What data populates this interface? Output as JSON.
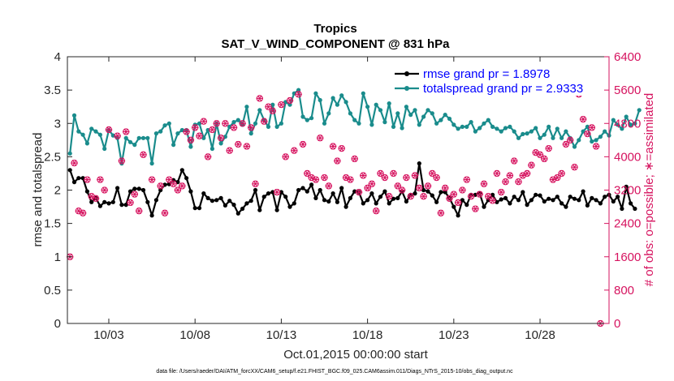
{
  "chart_data": {
    "type": "line",
    "title": "Tropics",
    "subtitle": "SAT_V_WIND_COMPONENT @ 831 hPa",
    "xlabel": "Oct.01,2015 00:00:00 start",
    "ylabel_left": "rmse and totalspread",
    "ylabel_right": "# of obs: o=possible; ∗=assimilated",
    "footnote": "data file: /Users/raeder/DAI/ATM_forcXX/CAM6_setup/f.e21.FHIST_BGC.f09_025.CAM6assim.011/Diags_NTrS_2015-10/obs_diag_output.nc",
    "xlim": [
      0.6,
      32.0
    ],
    "ylim_left": [
      0,
      4
    ],
    "ylim_right": [
      0,
      6400
    ],
    "left_ticks": [
      "0",
      "0.5",
      "1",
      "1.5",
      "2",
      "2.5",
      "3",
      "3.5",
      "4"
    ],
    "right_ticks": [
      "0",
      "800",
      "1600",
      "2400",
      "3200",
      "4000",
      "4800",
      "5600",
      "6400"
    ],
    "x_ticks": [
      {
        "pos": 3,
        "label": "10/03"
      },
      {
        "pos": 8,
        "label": "10/08"
      },
      {
        "pos": 13,
        "label": "10/13"
      },
      {
        "pos": 18,
        "label": "10/18"
      },
      {
        "pos": 23,
        "label": "10/23"
      },
      {
        "pos": 28,
        "label": "10/28"
      }
    ],
    "legend": [
      {
        "name": "rmse grand pr = 1.8978",
        "color": "#000000"
      },
      {
        "name": "totalspread grand pr = 2.9333",
        "color": "#1a8c8c"
      }
    ],
    "x_start": 0.75,
    "x_step": 0.25,
    "series": [
      {
        "name": "rmse",
        "axis": "left",
        "color": "#000000",
        "values": [
          2.3,
          2.12,
          2.18,
          2.18,
          1.98,
          1.82,
          1.88,
          1.76,
          1.82,
          1.8,
          1.82,
          2.03,
          1.78,
          1.78,
          1.98,
          2.02,
          2.02,
          2.0,
          1.82,
          1.62,
          1.85,
          2.0,
          2.08,
          2.09,
          2.15,
          2.12,
          2.3,
          2.18,
          1.98,
          1.73,
          1.73,
          1.95,
          1.88,
          1.84,
          1.85,
          1.88,
          1.77,
          1.84,
          1.78,
          1.65,
          1.72,
          1.8,
          1.84,
          2.0,
          1.7,
          1.9,
          1.95,
          1.97,
          1.7,
          1.97,
          1.9,
          1.75,
          1.8,
          2.0,
          2.03,
          1.98,
          2.08,
          1.88,
          2.0,
          1.85,
          1.83,
          1.95,
          1.82,
          2.03,
          1.75,
          1.88,
          1.98,
          1.97,
          1.8,
          1.85,
          1.95,
          1.8,
          1.9,
          1.98,
          1.8,
          1.87,
          1.88,
          1.98,
          1.83,
          1.93,
          1.95,
          2.4,
          2.0,
          1.98,
          1.92,
          1.82,
          1.97,
          1.97,
          1.88,
          1.75,
          1.62,
          1.85,
          1.78,
          1.93,
          1.93,
          1.95,
          1.75,
          1.85,
          1.93,
          1.82,
          1.86,
          1.88,
          1.8,
          1.9,
          1.85,
          1.97,
          1.78,
          1.85,
          1.93,
          1.92,
          1.83,
          1.87,
          1.85,
          1.9,
          1.8,
          1.75,
          1.9,
          1.87,
          1.85,
          1.98,
          1.77,
          1.88,
          1.85,
          1.8,
          1.9,
          1.93,
          1.83,
          1.9,
          1.72,
          2.05,
          1.8,
          1.72
        ]
      },
      {
        "name": "totalspread",
        "axis": "left",
        "color": "#1a8c8c",
        "values": [
          2.55,
          3.12,
          2.88,
          2.83,
          2.7,
          2.92,
          2.88,
          2.83,
          2.62,
          2.9,
          2.82,
          2.78,
          2.4,
          2.78,
          2.72,
          2.68,
          2.78,
          2.78,
          2.78,
          2.4,
          2.85,
          2.88,
          2.97,
          3.0,
          2.68,
          2.85,
          2.9,
          2.9,
          2.65,
          2.98,
          3.0,
          2.78,
          2.9,
          2.62,
          3.0,
          2.7,
          2.8,
          2.95,
          3.02,
          3.05,
          2.98,
          3.25,
          2.85,
          3.0,
          3.2,
          3.05,
          2.95,
          3.28,
          2.95,
          3.0,
          3.32,
          3.28,
          3.45,
          3.5,
          3.1,
          3.05,
          3.08,
          3.45,
          3.35,
          3.0,
          3.15,
          3.38,
          3.28,
          3.42,
          3.32,
          3.15,
          3.05,
          3.0,
          3.45,
          3.25,
          2.98,
          3.28,
          3.2,
          3.02,
          3.3,
          2.95,
          3.15,
          2.93,
          3.25,
          3.13,
          3.2,
          2.98,
          3.1,
          3.2,
          3.15,
          3.0,
          3.05,
          3.13,
          3.07,
          2.98,
          2.92,
          2.95,
          2.95,
          3.02,
          2.88,
          2.93,
          3.0,
          3.05,
          2.95,
          2.92,
          2.88,
          2.93,
          2.95,
          2.88,
          2.78,
          2.84,
          2.85,
          2.88,
          2.93,
          2.78,
          2.83,
          2.95,
          2.78,
          2.92,
          2.78,
          2.88,
          2.78,
          2.65,
          2.75,
          2.88,
          2.95,
          2.73,
          2.75,
          2.8,
          2.88,
          2.82,
          3.05,
          2.98,
          2.92,
          3.1,
          2.98,
          3.0,
          3.2
        ]
      }
    ],
    "obs_points": [
      {
        "axis": "right",
        "x": 0.75,
        "y": 1600
      },
      {
        "axis": "right",
        "x": 1.0,
        "y": 3850
      },
      {
        "axis": "right",
        "x": 1.25,
        "y": 2700
      },
      {
        "axis": "right",
        "x": 1.5,
        "y": 2650
      },
      {
        "axis": "right",
        "x": 1.75,
        "y": 3450
      },
      {
        "axis": "right",
        "x": 2.0,
        "y": 3050
      },
      {
        "axis": "right",
        "x": 2.25,
        "y": 3000
      },
      {
        "axis": "right",
        "x": 2.5,
        "y": 3450
      },
      {
        "axis": "right",
        "x": 2.75,
        "y": 3200
      },
      {
        "axis": "right",
        "x": 3.0,
        "y": 4650
      },
      {
        "axis": "right",
        "x": 3.5,
        "y": 4500
      },
      {
        "axis": "right",
        "x": 3.75,
        "y": 3900
      },
      {
        "axis": "right",
        "x": 4.0,
        "y": 4600
      },
      {
        "axis": "right",
        "x": 4.25,
        "y": 2900
      },
      {
        "axis": "right",
        "x": 4.5,
        "y": 3100
      },
      {
        "axis": "right",
        "x": 4.75,
        "y": 2700
      },
      {
        "axis": "right",
        "x": 5.0,
        "y": 4050
      },
      {
        "axis": "right",
        "x": 5.5,
        "y": 3450
      },
      {
        "axis": "right",
        "x": 6.0,
        "y": 3300
      },
      {
        "axis": "right",
        "x": 6.25,
        "y": 2650
      },
      {
        "axis": "right",
        "x": 6.5,
        "y": 3450
      },
      {
        "axis": "right",
        "x": 6.75,
        "y": 3350
      },
      {
        "axis": "right",
        "x": 7.0,
        "y": 3200
      },
      {
        "axis": "right",
        "x": 7.25,
        "y": 3300
      },
      {
        "axis": "right",
        "x": 7.5,
        "y": 4600
      },
      {
        "axis": "right",
        "x": 7.75,
        "y": 4400
      },
      {
        "axis": "right",
        "x": 8.0,
        "y": 4700
      },
      {
        "axis": "right",
        "x": 8.25,
        "y": 4500
      },
      {
        "axis": "right",
        "x": 8.5,
        "y": 4850
      },
      {
        "axis": "right",
        "x": 8.75,
        "y": 4000
      },
      {
        "axis": "right",
        "x": 9.0,
        "y": 4650
      },
      {
        "axis": "right",
        "x": 9.25,
        "y": 4800
      },
      {
        "axis": "right",
        "x": 9.5,
        "y": 4450
      },
      {
        "axis": "right",
        "x": 9.75,
        "y": 4800
      },
      {
        "axis": "right",
        "x": 10.0,
        "y": 4150
      },
      {
        "axis": "right",
        "x": 10.25,
        "y": 4700
      },
      {
        "axis": "right",
        "x": 10.5,
        "y": 4300
      },
      {
        "axis": "right",
        "x": 10.75,
        "y": 4800
      },
      {
        "axis": "right",
        "x": 11.0,
        "y": 4250
      },
      {
        "axis": "right",
        "x": 11.25,
        "y": 4700
      },
      {
        "axis": "right",
        "x": 11.5,
        "y": 3350
      },
      {
        "axis": "right",
        "x": 11.75,
        "y": 5400
      },
      {
        "axis": "right",
        "x": 12.0,
        "y": 4850
      },
      {
        "axis": "right",
        "x": 12.25,
        "y": 5200
      },
      {
        "axis": "right",
        "x": 12.5,
        "y": 5100
      },
      {
        "axis": "right",
        "x": 12.75,
        "y": 3150
      },
      {
        "axis": "right",
        "x": 13.0,
        "y": 5250
      },
      {
        "axis": "right",
        "x": 13.25,
        "y": 4000
      },
      {
        "axis": "right",
        "x": 13.5,
        "y": 5350
      },
      {
        "axis": "right",
        "x": 13.75,
        "y": 4150
      },
      {
        "axis": "right",
        "x": 14.0,
        "y": 5500
      },
      {
        "axis": "right",
        "x": 14.25,
        "y": 4300
      },
      {
        "axis": "right",
        "x": 14.5,
        "y": 3600
      },
      {
        "axis": "right",
        "x": 14.75,
        "y": 3500
      },
      {
        "axis": "right",
        "x": 15.0,
        "y": 3450
      },
      {
        "axis": "right",
        "x": 15.25,
        "y": 4450
      },
      {
        "axis": "right",
        "x": 15.5,
        "y": 3500
      },
      {
        "axis": "right",
        "x": 15.75,
        "y": 3300
      },
      {
        "axis": "right",
        "x": 16.0,
        "y": 4250
      },
      {
        "axis": "right",
        "x": 16.25,
        "y": 3900
      },
      {
        "axis": "right",
        "x": 16.5,
        "y": 4200
      },
      {
        "axis": "right",
        "x": 16.75,
        "y": 3500
      },
      {
        "axis": "right",
        "x": 17.0,
        "y": 3450
      },
      {
        "axis": "right",
        "x": 17.25,
        "y": 3950
      },
      {
        "axis": "right",
        "x": 17.5,
        "y": 3150
      },
      {
        "axis": "right",
        "x": 17.75,
        "y": 3550
      },
      {
        "axis": "right",
        "x": 18.0,
        "y": 3250
      },
      {
        "axis": "right",
        "x": 18.25,
        "y": 3350
      },
      {
        "axis": "right",
        "x": 18.5,
        "y": 2700
      },
      {
        "axis": "right",
        "x": 18.75,
        "y": 3600
      },
      {
        "axis": "right",
        "x": 19.0,
        "y": 3500
      },
      {
        "axis": "right",
        "x": 19.25,
        "y": 3050
      },
      {
        "axis": "right",
        "x": 19.5,
        "y": 3600
      },
      {
        "axis": "right",
        "x": 19.75,
        "y": 3300
      },
      {
        "axis": "right",
        "x": 20.0,
        "y": 3200
      },
      {
        "axis": "right",
        "x": 20.25,
        "y": 3500
      },
      {
        "axis": "right",
        "x": 20.5,
        "y": 3050
      },
      {
        "axis": "right",
        "x": 20.75,
        "y": 3550
      },
      {
        "axis": "right",
        "x": 21.0,
        "y": 3250
      },
      {
        "axis": "right",
        "x": 21.25,
        "y": 3050
      },
      {
        "axis": "right",
        "x": 21.5,
        "y": 3300
      },
      {
        "axis": "right",
        "x": 21.75,
        "y": 3600
      },
      {
        "axis": "right",
        "x": 22.0,
        "y": 3500
      },
      {
        "axis": "right",
        "x": 22.25,
        "y": 2650
      },
      {
        "axis": "right",
        "x": 22.5,
        "y": 3250
      },
      {
        "axis": "right",
        "x": 22.75,
        "y": 3000
      },
      {
        "axis": "right",
        "x": 23.0,
        "y": 3100
      },
      {
        "axis": "right",
        "x": 23.25,
        "y": 2900
      },
      {
        "axis": "right",
        "x": 23.5,
        "y": 3200
      },
      {
        "axis": "right",
        "x": 23.75,
        "y": 3450
      },
      {
        "axis": "right",
        "x": 24.0,
        "y": 3050
      },
      {
        "axis": "right",
        "x": 24.25,
        "y": 2750
      },
      {
        "axis": "right",
        "x": 24.5,
        "y": 3100
      },
      {
        "axis": "right",
        "x": 24.75,
        "y": 3350
      },
      {
        "axis": "right",
        "x": 25.0,
        "y": 3050
      },
      {
        "axis": "right",
        "x": 25.25,
        "y": 2950
      },
      {
        "axis": "right",
        "x": 25.5,
        "y": 3600
      },
      {
        "axis": "right",
        "x": 25.75,
        "y": 3150
      },
      {
        "axis": "right",
        "x": 26.0,
        "y": 3400
      },
      {
        "axis": "right",
        "x": 26.25,
        "y": 3550
      },
      {
        "axis": "right",
        "x": 26.5,
        "y": 3900
      },
      {
        "axis": "right",
        "x": 26.75,
        "y": 3400
      },
      {
        "axis": "right",
        "x": 27.0,
        "y": 3550
      },
      {
        "axis": "right",
        "x": 27.25,
        "y": 3600
      },
      {
        "axis": "right",
        "x": 27.5,
        "y": 3800
      },
      {
        "axis": "right",
        "x": 27.75,
        "y": 4100
      },
      {
        "axis": "right",
        "x": 28.0,
        "y": 4050
      },
      {
        "axis": "right",
        "x": 28.25,
        "y": 3950
      },
      {
        "axis": "right",
        "x": 28.5,
        "y": 4200
      },
      {
        "axis": "right",
        "x": 28.75,
        "y": 3450
      },
      {
        "axis": "right",
        "x": 29.0,
        "y": 3500
      },
      {
        "axis": "right",
        "x": 29.25,
        "y": 3600
      },
      {
        "axis": "right",
        "x": 29.5,
        "y": 4300
      },
      {
        "axis": "right",
        "x": 29.75,
        "y": 4400
      },
      {
        "axis": "right",
        "x": 30.0,
        "y": 3750
      },
      {
        "axis": "right",
        "x": 30.25,
        "y": 5500
      },
      {
        "axis": "right",
        "x": 30.5,
        "y": 4900
      },
      {
        "axis": "right",
        "x": 30.75,
        "y": 4550
      },
      {
        "axis": "right",
        "x": 31.0,
        "y": 4700
      },
      {
        "axis": "right",
        "x": 31.25,
        "y": 4250
      },
      {
        "axis": "right",
        "x": 31.5,
        "y": 0
      }
    ]
  }
}
